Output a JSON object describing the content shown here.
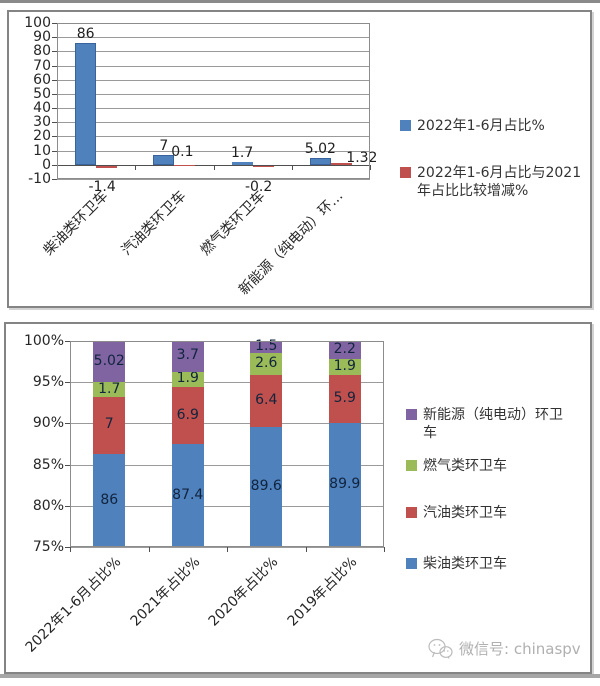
{
  "watermark": {
    "icon": "wechat-icon",
    "text": "微信号: chinaspv"
  },
  "chart_data": [
    {
      "type": "bar",
      "title": "",
      "categories": [
        "柴油类环卫车",
        "汽油类环卫车",
        "燃气类环卫车",
        "新能源（纯电动）环…"
      ],
      "series": [
        {
          "name": "2022年1-6月占比%",
          "color": "#4F81BD",
          "border": "#39639B",
          "values": [
            86,
            7,
            1.7,
            5.02
          ]
        },
        {
          "name": "2022年1-6月占比与2021年占比比较增减%",
          "color": "#C0504D",
          "border": "#973B38",
          "values": [
            -1.4,
            0.1,
            -0.2,
            1.32
          ]
        }
      ],
      "ylim": [
        -10,
        100
      ],
      "yticks": [
        100,
        90,
        80,
        70,
        60,
        50,
        40,
        30,
        20,
        10,
        0,
        -10
      ],
      "grid": true,
      "legend_position": "right",
      "data_labels": true
    },
    {
      "type": "bar-stacked-100",
      "title": "",
      "categories": [
        "2022年1-6月占比%",
        "2021年占比%",
        "2020年占比%",
        "2019年占比%"
      ],
      "series": [
        {
          "name": "柴油类环卫车",
          "color": "#4F81BD",
          "values": [
            86,
            87.4,
            89.6,
            89.9
          ]
        },
        {
          "name": "汽油类环卫车",
          "color": "#C0504D",
          "values": [
            7,
            6.9,
            6.4,
            5.9
          ]
        },
        {
          "name": "燃气类环卫车",
          "color": "#9BBB59",
          "values": [
            1.7,
            1.9,
            2.6,
            1.9
          ]
        },
        {
          "name": "新能源（纯电动）环卫车",
          "color": "#8064A2",
          "values": [
            5.02,
            3.7,
            1.5,
            2.2
          ]
        }
      ],
      "ylim": [
        75,
        100
      ],
      "ytick_labels": [
        "100%",
        "95%",
        "90%",
        "85%",
        "80%",
        "75%"
      ],
      "ytick_values": [
        100,
        95,
        90,
        85,
        80,
        75
      ],
      "grid": true,
      "legend_position": "right",
      "legend_order": [
        3,
        2,
        1,
        0
      ],
      "data_labels": true
    }
  ]
}
